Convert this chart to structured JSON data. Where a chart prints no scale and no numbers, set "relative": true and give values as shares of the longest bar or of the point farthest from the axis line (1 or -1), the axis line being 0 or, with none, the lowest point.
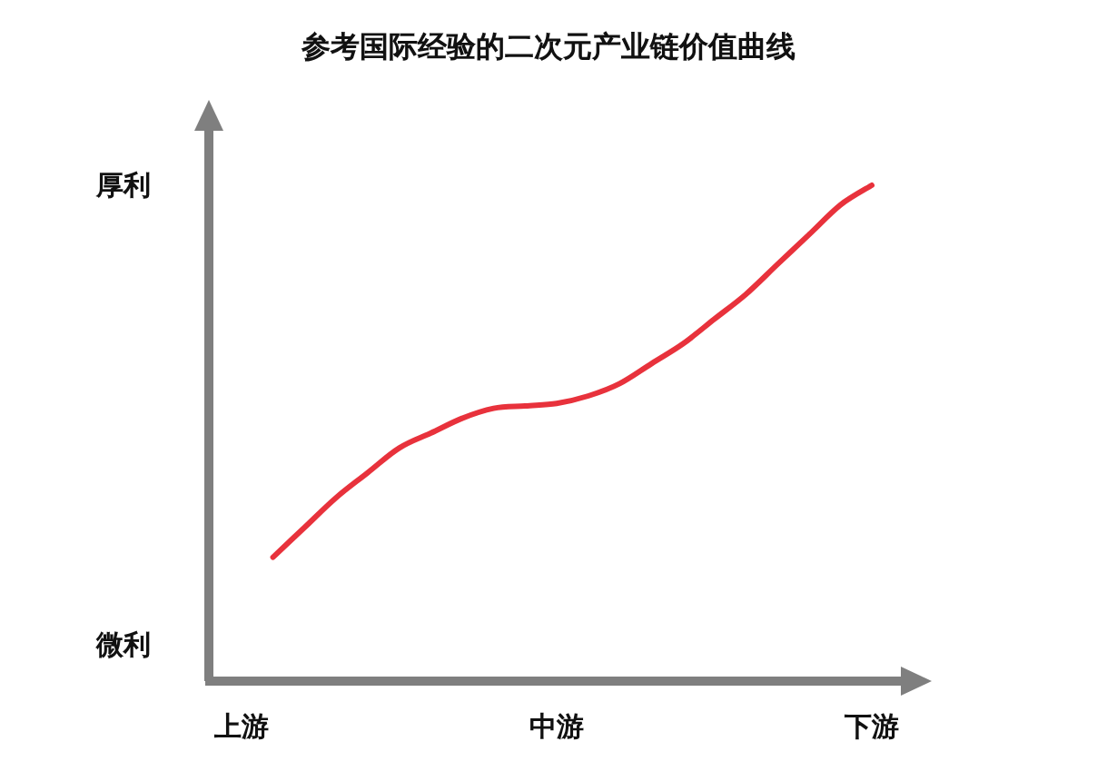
{
  "chart_data": {
    "type": "line",
    "title": "参考国际经验的二次元产业链价值曲线",
    "categories": [
      "上游",
      null,
      null,
      null,
      null,
      null,
      null,
      null,
      null,
      null,
      "中游",
      null,
      null,
      null,
      null,
      null,
      null,
      null,
      null,
      null,
      "下游"
    ],
    "values": [
      null,
      0.25,
      0.31,
      0.37,
      0.42,
      0.47,
      0.5,
      0.53,
      0.55,
      0.555,
      0.56,
      0.575,
      0.6,
      0.64,
      0.68,
      0.73,
      0.78,
      0.84,
      0.9,
      0.96,
      1
    ],
    "color": "#e8323c",
    "relative": true,
    "line_style": "solid",
    "annotations": [
      "厚利",
      "微利"
    ]
  }
}
